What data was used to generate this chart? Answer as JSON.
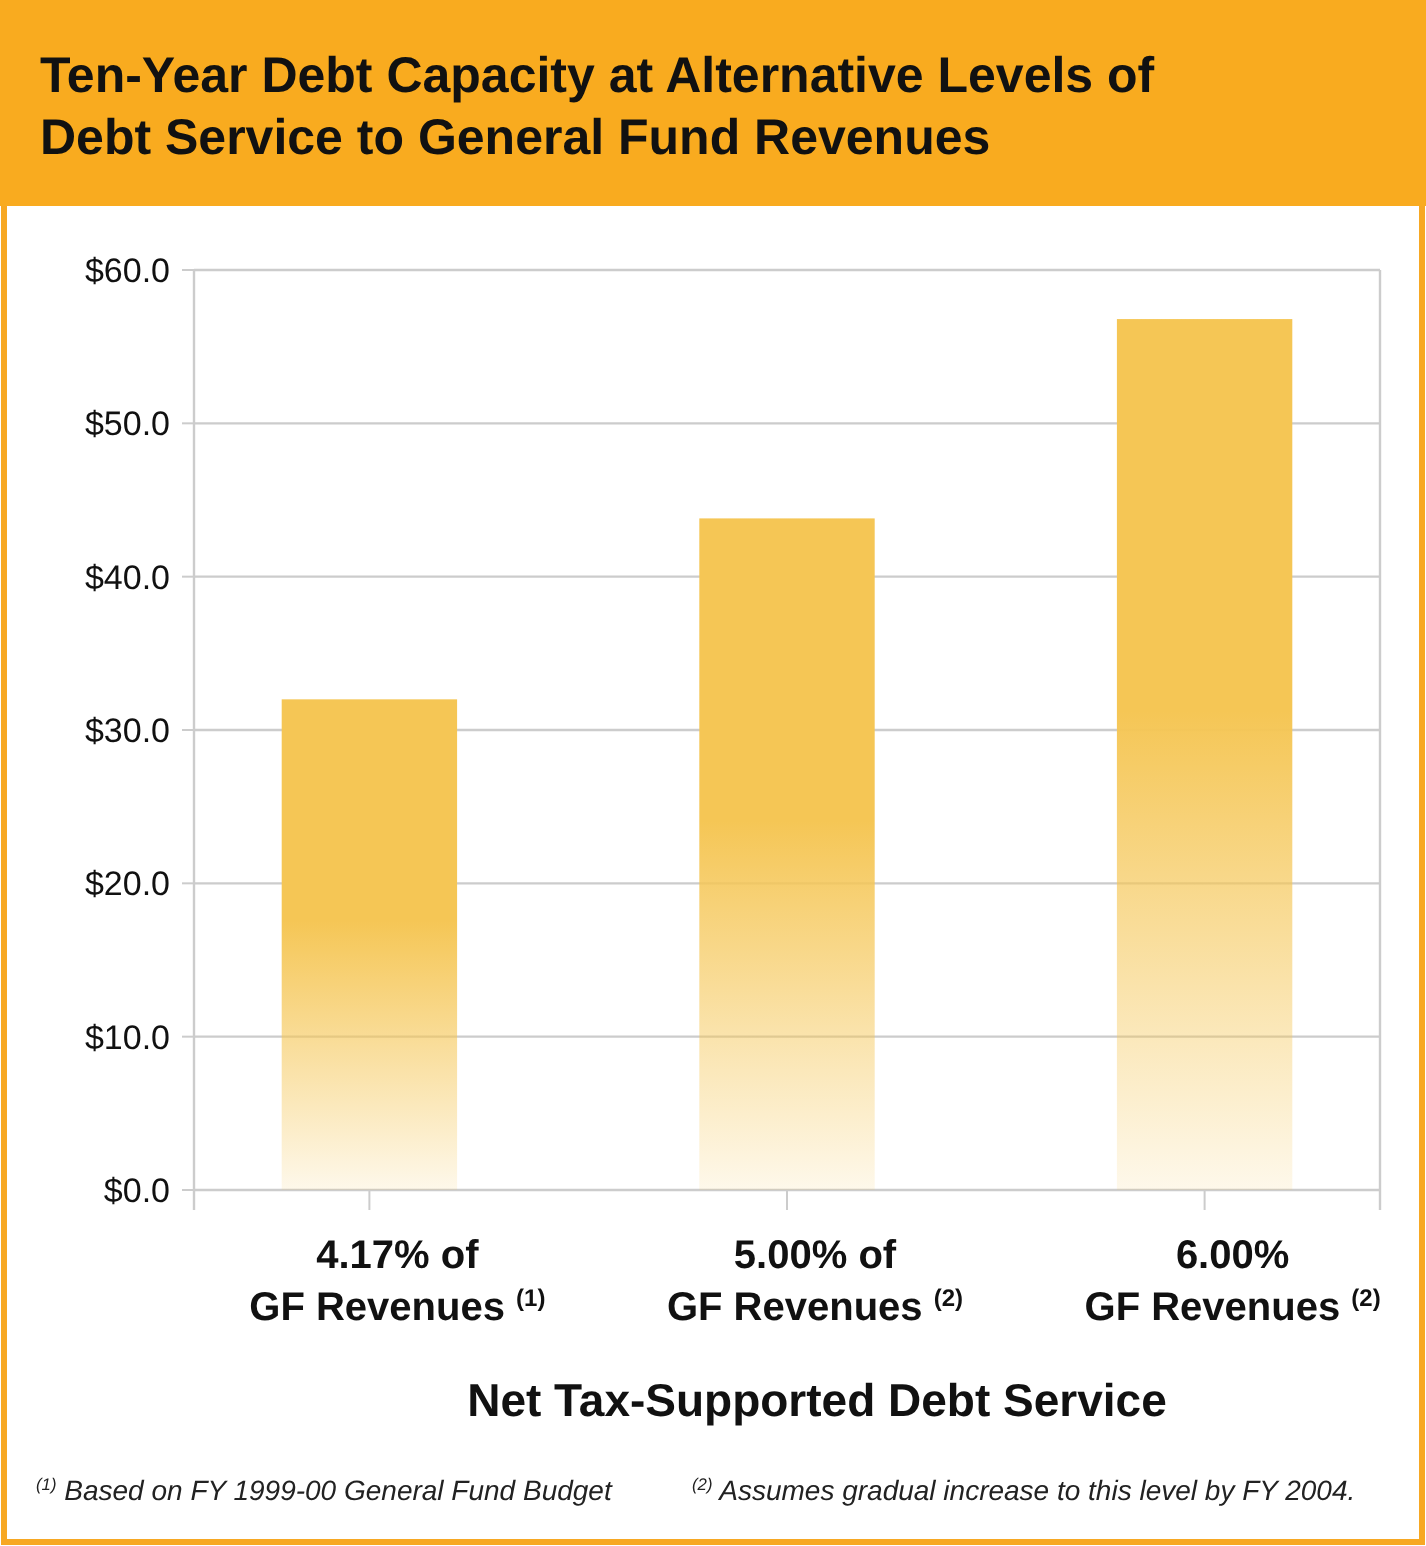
{
  "chart_data": {
    "type": "bar",
    "title": "Ten-Year Debt Capacity at Alternative Levels of Debt Service to General Fund Revenues",
    "xlabel": "Net Tax-Supported Debt Service",
    "categories": [
      "4.17% of\nGF Revenues $^{(1)}$",
      "5.00% of\nGF Revenues $^{(2)}$",
      "6.00%\nGF Revenues $^{(2)}$"
    ],
    "values": [
      32.0,
      43.8,
      56.8
    ],
    "color": "#f5c655",
    "ylim": [
      0,
      60
    ],
    "yticks": [
      {
        "value": 0,
        "label": "$0.0"
      },
      {
        "value": 10,
        "label": "$10.0"
      },
      {
        "value": 20,
        "label": "$20.0"
      },
      {
        "value": 30,
        "label": "$30.0"
      },
      {
        "value": 40,
        "label": "$40.0"
      },
      {
        "value": 50,
        "label": "$50.0"
      },
      {
        "value": 60,
        "label": "$60.0"
      }
    ],
    "grid": "y",
    "annotations": [
      "$^{(1)}$ Based on FY 1999-00 General Fund Budget",
      "$^{(2)}$ Assumes gradual increase to this level by FY 2004."
    ]
  }
}
